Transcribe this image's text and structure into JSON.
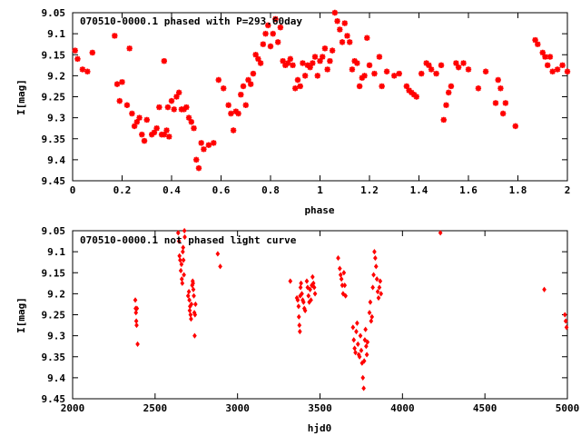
{
  "chart_data": [
    {
      "type": "scatter",
      "title": "070510-0000.1 phased with P=293.60day",
      "xlabel": "phase",
      "ylabel": "I[mag]",
      "xlim": [
        0,
        2
      ],
      "ylim": [
        9.45,
        9.05
      ],
      "y_axis_inverted": true,
      "grid": false,
      "marker_color": "#ff0000",
      "marker": "star",
      "x_ticks": [
        "0",
        "0.2",
        "0.4",
        "0.6",
        "0.8",
        "1",
        "1.2",
        "1.4",
        "1.6",
        "1.8",
        "2"
      ],
      "y_ticks": [
        "9.05",
        "9.1",
        "9.15",
        "9.2",
        "9.25",
        "9.3",
        "9.35",
        "9.4",
        "9.45"
      ],
      "points": [
        [
          0.01,
          9.14
        ],
        [
          0.02,
          9.16
        ],
        [
          0.04,
          9.185
        ],
        [
          0.06,
          9.19
        ],
        [
          0.08,
          9.145
        ],
        [
          0.17,
          9.105
        ],
        [
          0.18,
          9.22
        ],
        [
          0.19,
          9.26
        ],
        [
          0.2,
          9.215
        ],
        [
          0.22,
          9.27
        ],
        [
          0.23,
          9.135
        ],
        [
          0.24,
          9.29
        ],
        [
          0.25,
          9.32
        ],
        [
          0.26,
          9.31
        ],
        [
          0.27,
          9.3
        ],
        [
          0.28,
          9.34
        ],
        [
          0.29,
          9.355
        ],
        [
          0.3,
          9.305
        ],
        [
          0.32,
          9.34
        ],
        [
          0.33,
          9.335
        ],
        [
          0.34,
          9.325
        ],
        [
          0.35,
          9.275
        ],
        [
          0.36,
          9.34
        ],
        [
          0.37,
          9.165
        ],
        [
          0.37,
          9.34
        ],
        [
          0.38,
          9.33
        ],
        [
          0.385,
          9.275
        ],
        [
          0.39,
          9.345
        ],
        [
          0.4,
          9.26
        ],
        [
          0.41,
          9.28
        ],
        [
          0.42,
          9.25
        ],
        [
          0.43,
          9.24
        ],
        [
          0.44,
          9.28
        ],
        [
          0.45,
          9.28
        ],
        [
          0.46,
          9.275
        ],
        [
          0.47,
          9.3
        ],
        [
          0.48,
          9.31
        ],
        [
          0.49,
          9.325
        ],
        [
          0.5,
          9.4
        ],
        [
          0.51,
          9.42
        ],
        [
          0.52,
          9.36
        ],
        [
          0.53,
          9.375
        ],
        [
          0.55,
          9.365
        ],
        [
          0.57,
          9.36
        ],
        [
          0.59,
          9.21
        ],
        [
          0.61,
          9.23
        ],
        [
          0.63,
          9.27
        ],
        [
          0.64,
          9.29
        ],
        [
          0.65,
          9.33
        ],
        [
          0.66,
          9.285
        ],
        [
          0.67,
          9.29
        ],
        [
          0.68,
          9.245
        ],
        [
          0.69,
          9.225
        ],
        [
          0.7,
          9.27
        ],
        [
          0.71,
          9.21
        ],
        [
          0.72,
          9.22
        ],
        [
          0.73,
          9.195
        ],
        [
          0.74,
          9.15
        ],
        [
          0.75,
          9.16
        ],
        [
          0.76,
          9.17
        ],
        [
          0.77,
          9.125
        ],
        [
          0.78,
          9.1
        ],
        [
          0.79,
          9.08
        ],
        [
          0.8,
          9.13
        ],
        [
          0.81,
          9.1
        ],
        [
          0.82,
          9.065
        ],
        [
          0.83,
          9.12
        ],
        [
          0.84,
          9.085
        ],
        [
          0.85,
          9.165
        ],
        [
          0.86,
          9.175
        ],
        [
          0.87,
          9.17
        ],
        [
          0.88,
          9.16
        ],
        [
          0.89,
          9.175
        ],
        [
          0.9,
          9.23
        ],
        [
          0.91,
          9.21
        ],
        [
          0.92,
          9.225
        ],
        [
          0.93,
          9.17
        ],
        [
          0.94,
          9.2
        ],
        [
          0.95,
          9.175
        ],
        [
          0.96,
          9.18
        ],
        [
          0.97,
          9.17
        ],
        [
          0.98,
          9.155
        ],
        [
          0.99,
          9.2
        ],
        [
          1.0,
          9.165
        ],
        [
          1.01,
          9.155
        ],
        [
          1.02,
          9.135
        ],
        [
          1.03,
          9.185
        ],
        [
          1.04,
          9.165
        ],
        [
          1.05,
          9.14
        ],
        [
          1.06,
          9.05
        ],
        [
          1.07,
          9.07
        ],
        [
          1.08,
          9.09
        ],
        [
          1.09,
          9.12
        ],
        [
          1.1,
          9.075
        ],
        [
          1.11,
          9.105
        ],
        [
          1.12,
          9.12
        ],
        [
          1.13,
          9.185
        ],
        [
          1.14,
          9.165
        ],
        [
          1.15,
          9.17
        ],
        [
          1.16,
          9.225
        ],
        [
          1.17,
          9.205
        ],
        [
          1.18,
          9.2
        ],
        [
          1.19,
          9.11
        ],
        [
          1.2,
          9.175
        ],
        [
          1.22,
          9.195
        ],
        [
          1.24,
          9.155
        ],
        [
          1.25,
          9.225
        ],
        [
          1.27,
          9.19
        ],
        [
          1.3,
          9.2
        ],
        [
          1.32,
          9.195
        ],
        [
          1.35,
          9.225
        ],
        [
          1.36,
          9.235
        ],
        [
          1.37,
          9.24
        ],
        [
          1.38,
          9.245
        ],
        [
          1.39,
          9.25
        ],
        [
          1.41,
          9.195
        ],
        [
          1.43,
          9.17
        ],
        [
          1.44,
          9.175
        ],
        [
          1.45,
          9.185
        ],
        [
          1.47,
          9.195
        ],
        [
          1.49,
          9.175
        ],
        [
          1.5,
          9.305
        ],
        [
          1.51,
          9.27
        ],
        [
          1.52,
          9.24
        ],
        [
          1.53,
          9.225
        ],
        [
          1.55,
          9.17
        ],
        [
          1.56,
          9.18
        ],
        [
          1.58,
          9.17
        ],
        [
          1.6,
          9.185
        ],
        [
          1.64,
          9.23
        ],
        [
          1.67,
          9.19
        ],
        [
          1.71,
          9.265
        ],
        [
          1.72,
          9.21
        ],
        [
          1.73,
          9.23
        ],
        [
          1.74,
          9.29
        ],
        [
          1.75,
          9.265
        ],
        [
          1.79,
          9.32
        ],
        [
          1.87,
          9.115
        ],
        [
          1.88,
          9.125
        ],
        [
          1.9,
          9.145
        ],
        [
          1.91,
          9.155
        ],
        [
          1.92,
          9.175
        ],
        [
          1.93,
          9.155
        ],
        [
          1.94,
          9.19
        ],
        [
          1.96,
          9.185
        ],
        [
          1.98,
          9.175
        ],
        [
          2.0,
          9.19
        ]
      ]
    },
    {
      "type": "scatter",
      "title": "070510-0000.1 not phased light curve",
      "xlabel": "hjd0",
      "ylabel": "I[mag]",
      "xlim": [
        2000,
        5000
      ],
      "ylim": [
        9.45,
        9.05
      ],
      "y_axis_inverted": true,
      "grid": false,
      "marker_color": "#ff0000",
      "marker": "diamond",
      "x_ticks": [
        "2000",
        "2500",
        "3000",
        "3500",
        "4000",
        "4500",
        "5000"
      ],
      "y_ticks": [
        "9.05",
        "9.1",
        "9.15",
        "9.2",
        "9.25",
        "9.3",
        "9.35",
        "9.4",
        "9.45"
      ],
      "points": [
        [
          2380,
          9.215
        ],
        [
          2382,
          9.235
        ],
        [
          2384,
          9.245
        ],
        [
          2386,
          9.265
        ],
        [
          2388,
          9.275
        ],
        [
          2390,
          9.235
        ],
        [
          2394,
          9.32
        ],
        [
          2640,
          9.055
        ],
        [
          2645,
          9.075
        ],
        [
          2648,
          9.11
        ],
        [
          2652,
          9.12
        ],
        [
          2656,
          9.145
        ],
        [
          2660,
          9.13
        ],
        [
          2662,
          9.165
        ],
        [
          2665,
          9.175
        ],
        [
          2668,
          9.1
        ],
        [
          2670,
          9.09
        ],
        [
          2672,
          9.12
        ],
        [
          2675,
          9.155
        ],
        [
          2678,
          9.05
        ],
        [
          2680,
          9.065
        ],
        [
          2700,
          9.205
        ],
        [
          2705,
          9.195
        ],
        [
          2708,
          9.215
        ],
        [
          2710,
          9.24
        ],
        [
          2712,
          9.23
        ],
        [
          2715,
          9.25
        ],
        [
          2718,
          9.26
        ],
        [
          2720,
          9.225
        ],
        [
          2725,
          9.18
        ],
        [
          2728,
          9.17
        ],
        [
          2730,
          9.175
        ],
        [
          2732,
          9.19
        ],
        [
          2735,
          9.205
        ],
        [
          2738,
          9.245
        ],
        [
          2740,
          9.3
        ],
        [
          2742,
          9.25
        ],
        [
          2745,
          9.225
        ],
        [
          2880,
          9.105
        ],
        [
          2895,
          9.135
        ],
        [
          3320,
          9.17
        ],
        [
          3360,
          9.21
        ],
        [
          3365,
          9.215
        ],
        [
          3370,
          9.23
        ],
        [
          3372,
          9.255
        ],
        [
          3375,
          9.275
        ],
        [
          3378,
          9.29
        ],
        [
          3380,
          9.205
        ],
        [
          3382,
          9.185
        ],
        [
          3385,
          9.175
        ],
        [
          3390,
          9.2
        ],
        [
          3395,
          9.215
        ],
        [
          3400,
          9.22
        ],
        [
          3405,
          9.235
        ],
        [
          3410,
          9.24
        ],
        [
          3420,
          9.17
        ],
        [
          3425,
          9.185
        ],
        [
          3430,
          9.205
        ],
        [
          3435,
          9.22
        ],
        [
          3440,
          9.19
        ],
        [
          3445,
          9.215
        ],
        [
          3450,
          9.18
        ],
        [
          3455,
          9.16
        ],
        [
          3460,
          9.175
        ],
        [
          3465,
          9.185
        ],
        [
          3470,
          9.2
        ],
        [
          3610,
          9.115
        ],
        [
          3620,
          9.14
        ],
        [
          3625,
          9.155
        ],
        [
          3630,
          9.165
        ],
        [
          3635,
          9.18
        ],
        [
          3640,
          9.2
        ],
        [
          3645,
          9.15
        ],
        [
          3650,
          9.18
        ],
        [
          3655,
          9.205
        ],
        [
          3700,
          9.28
        ],
        [
          3705,
          9.31
        ],
        [
          3710,
          9.33
        ],
        [
          3715,
          9.34
        ],
        [
          3720,
          9.29
        ],
        [
          3725,
          9.27
        ],
        [
          3730,
          9.32
        ],
        [
          3735,
          9.345
        ],
        [
          3740,
          9.35
        ],
        [
          3745,
          9.3
        ],
        [
          3750,
          9.335
        ],
        [
          3755,
          9.365
        ],
        [
          3760,
          9.4
        ],
        [
          3765,
          9.425
        ],
        [
          3768,
          9.36
        ],
        [
          3772,
          9.31
        ],
        [
          3776,
          9.285
        ],
        [
          3780,
          9.325
        ],
        [
          3784,
          9.345
        ],
        [
          3788,
          9.315
        ],
        [
          3800,
          9.245
        ],
        [
          3805,
          9.22
        ],
        [
          3810,
          9.265
        ],
        [
          3815,
          9.255
        ],
        [
          3820,
          9.185
        ],
        [
          3825,
          9.155
        ],
        [
          3830,
          9.1
        ],
        [
          3835,
          9.115
        ],
        [
          3840,
          9.135
        ],
        [
          3845,
          9.165
        ],
        [
          3850,
          9.195
        ],
        [
          3855,
          9.21
        ],
        [
          3860,
          9.185
        ],
        [
          3865,
          9.17
        ],
        [
          3870,
          9.2
        ],
        [
          4230,
          9.055
        ],
        [
          4860,
          9.19
        ],
        [
          4985,
          9.25
        ],
        [
          4990,
          9.265
        ],
        [
          4995,
          9.28
        ]
      ]
    }
  ]
}
